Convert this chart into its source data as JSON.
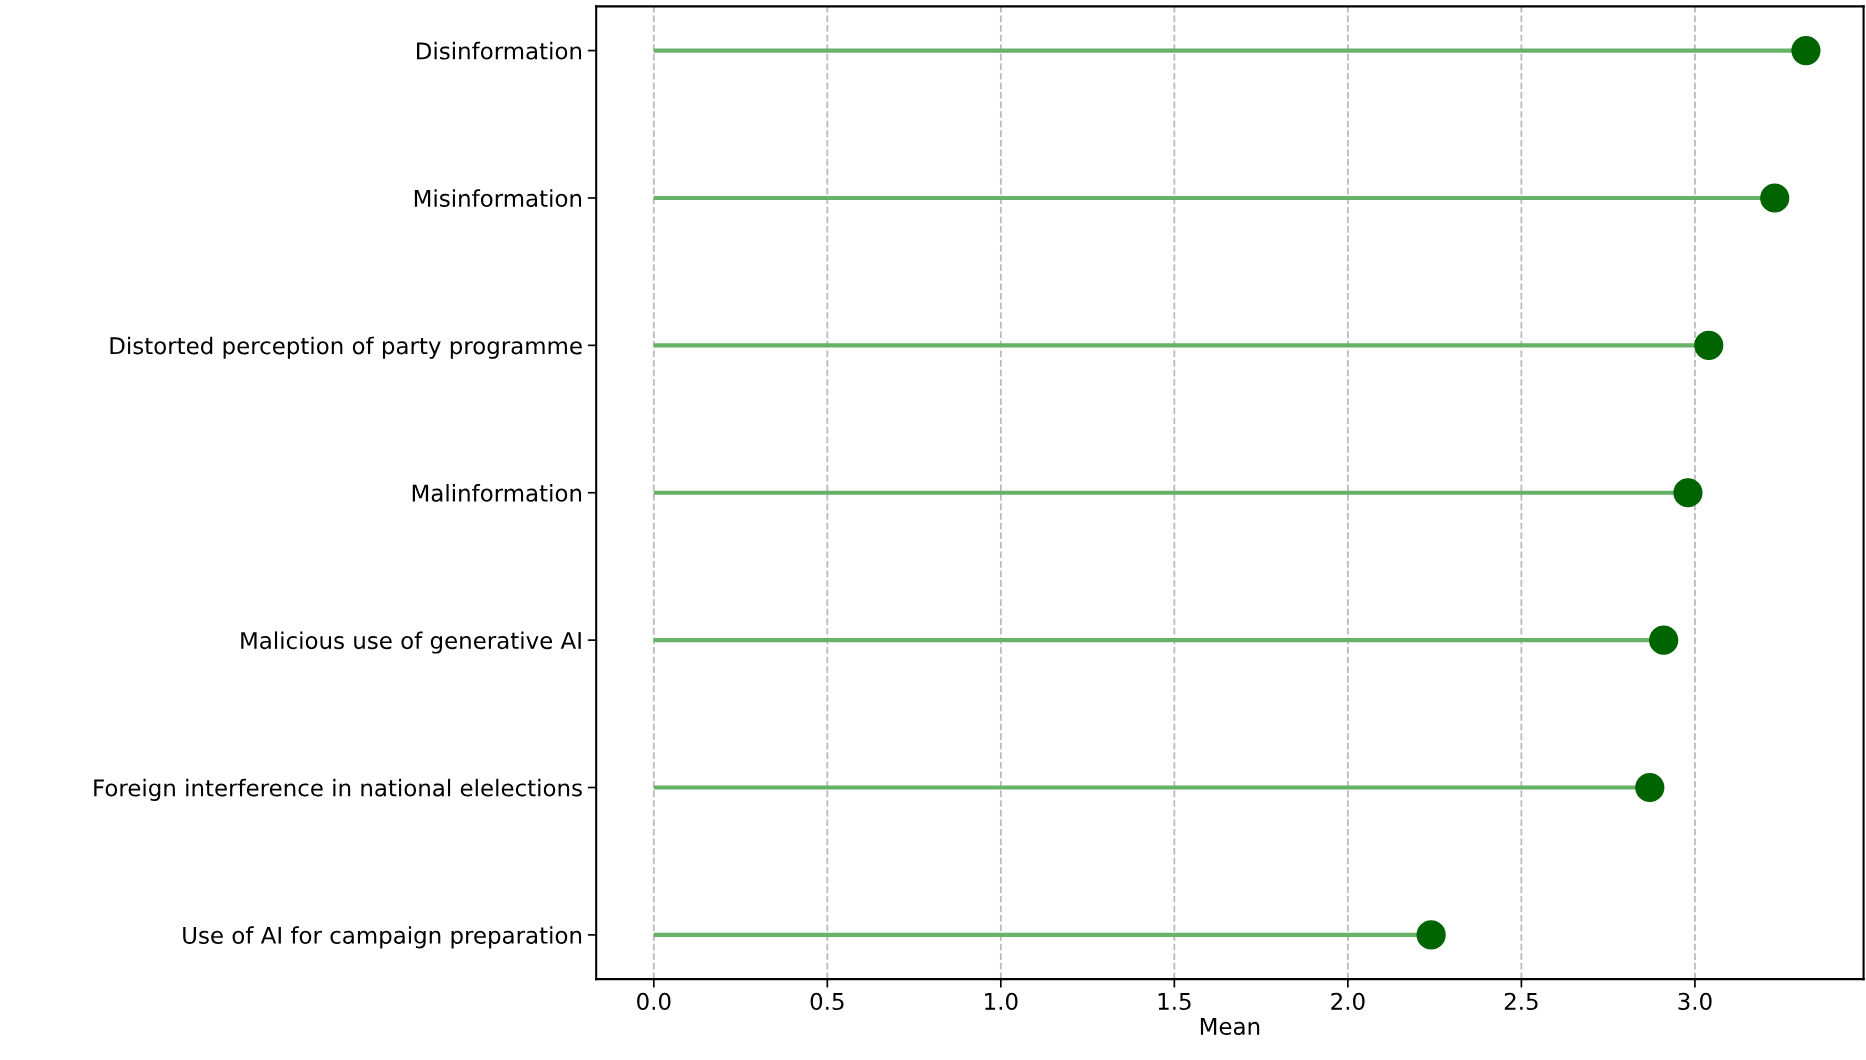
{
  "chart_data": {
    "type": "lollipop",
    "orientation": "horizontal",
    "xlabel": "Mean",
    "categories": [
      "Disinformation",
      "Misinformation",
      "Distorted perception of party programme",
      "Malinformation",
      "Malicious use of generative AI",
      "Foreign interference in national elelections",
      "Use of AI for campaign preparation"
    ],
    "color": "#66b266",
    "series": [
      {
        "color": "#006400",
        "values": [
          3.32,
          3.23,
          3.04,
          2.98,
          2.91,
          2.87,
          2.24
        ]
      }
    ],
    "xlim": [
      -0.166,
      3.486
    ],
    "xticks": [
      {
        "value": 0,
        "label": "0.0"
      },
      0.5,
      {
        "value": 1,
        "label": "1.0"
      },
      1.5,
      {
        "value": 2,
        "label": "2.0"
      },
      2.5,
      {
        "value": 3,
        "label": "3.0"
      }
    ],
    "grid": "x",
    "marker": "circle",
    "line_style": "solid"
  }
}
